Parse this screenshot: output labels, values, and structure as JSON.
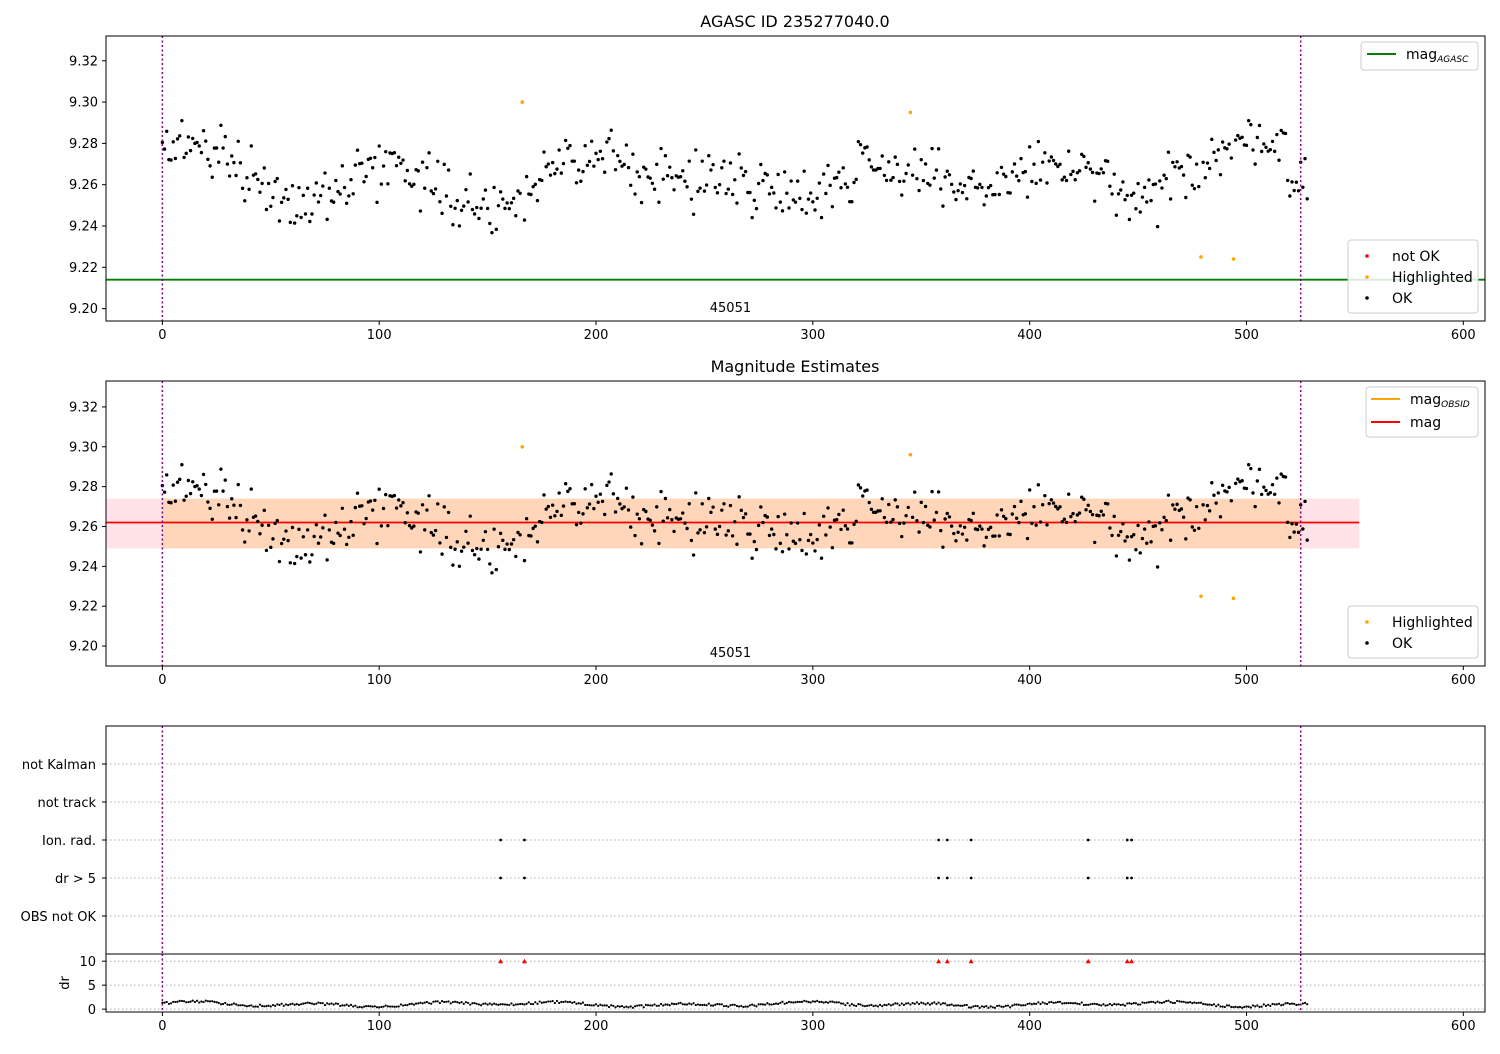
{
  "chart_data": [
    {
      "type": "scatter",
      "title": "AGASC ID 235277040.0",
      "xlim": [
        -26,
        610
      ],
      "ylim": [
        9.194,
        9.332
      ],
      "xticks": [
        0,
        100,
        200,
        300,
        400,
        500,
        600
      ],
      "yticks": [
        9.2,
        9.22,
        9.24,
        9.26,
        9.28,
        9.3,
        9.32
      ],
      "vlines": [
        0,
        525
      ],
      "obsid_label": "45051",
      "obsid_label_x": 262,
      "reference_line": {
        "name": "mag",
        "subscript": "AGASC",
        "y": 9.214,
        "color": "#008000"
      },
      "legend_lines_position": "top-right",
      "legend_points_position": "bottom-right",
      "legend_points": [
        {
          "label": "not OK",
          "color": "#ff0000"
        },
        {
          "label": "Highlighted",
          "color": "#ffa500"
        },
        {
          "label": "OK",
          "color": "#000000"
        }
      ],
      "highlighted_points": [
        [
          166,
          9.3
        ],
        [
          345,
          9.295
        ],
        [
          479,
          9.225
        ],
        [
          494,
          9.224
        ]
      ]
    },
    {
      "type": "scatter",
      "title": "Magnitude Estimates",
      "xlim": [
        -26,
        610
      ],
      "ylim": [
        9.19,
        9.333
      ],
      "xticks": [
        0,
        100,
        200,
        300,
        400,
        500,
        600
      ],
      "yticks": [
        9.2,
        9.22,
        9.24,
        9.26,
        9.28,
        9.3,
        9.32
      ],
      "vlines": [
        0,
        525
      ],
      "obsid_label": "45051",
      "obsid_label_x": 262,
      "mean_line": {
        "name": "mag",
        "y": 9.262,
        "color": "#ff0000"
      },
      "obsid_line": {
        "name": "mag",
        "subscript": "OBSID",
        "color": "#ffa500"
      },
      "band": {
        "ymin": 9.249,
        "ymax": 9.274,
        "xmin": -26,
        "xmax": 552,
        "obsid_xmin": 0,
        "obsid_xmax": 525
      },
      "legend_lines_position": "top-right",
      "legend_points_position": "bottom-right",
      "legend_points": [
        {
          "label": "Highlighted",
          "color": "#ffa500"
        },
        {
          "label": "OK",
          "color": "#000000"
        }
      ],
      "highlighted_points": [
        [
          166,
          9.3
        ],
        [
          345,
          9.296
        ],
        [
          479,
          9.225
        ],
        [
          494,
          9.224
        ]
      ]
    },
    {
      "type": "scatter",
      "title": "",
      "xlim": [
        -26,
        610
      ],
      "categories": [
        "not Kalman",
        "not track",
        "Ion. rad.",
        "dr > 5",
        "OBS not OK"
      ],
      "vlines": [
        0,
        525
      ],
      "flag_points": {
        "Ion. rad.": [
          156,
          167,
          358,
          362,
          373,
          427,
          445,
          447
        ],
        "dr > 5": [
          156,
          167,
          358,
          362,
          373,
          427,
          445,
          447
        ]
      }
    },
    {
      "type": "scatter",
      "title": "",
      "ylabel": "dr",
      "xlim": [
        -26,
        610
      ],
      "ylim": [
        -0.6,
        11.5
      ],
      "xticks": [
        0,
        100,
        200,
        300,
        400,
        500,
        600
      ],
      "yticks": [
        0,
        5,
        10
      ],
      "vlines": [
        0,
        525
      ],
      "marker_y": 10,
      "marker_color": "#ff0000",
      "marker_x": [
        156,
        167,
        358,
        362,
        373,
        427,
        445,
        447
      ]
    }
  ]
}
